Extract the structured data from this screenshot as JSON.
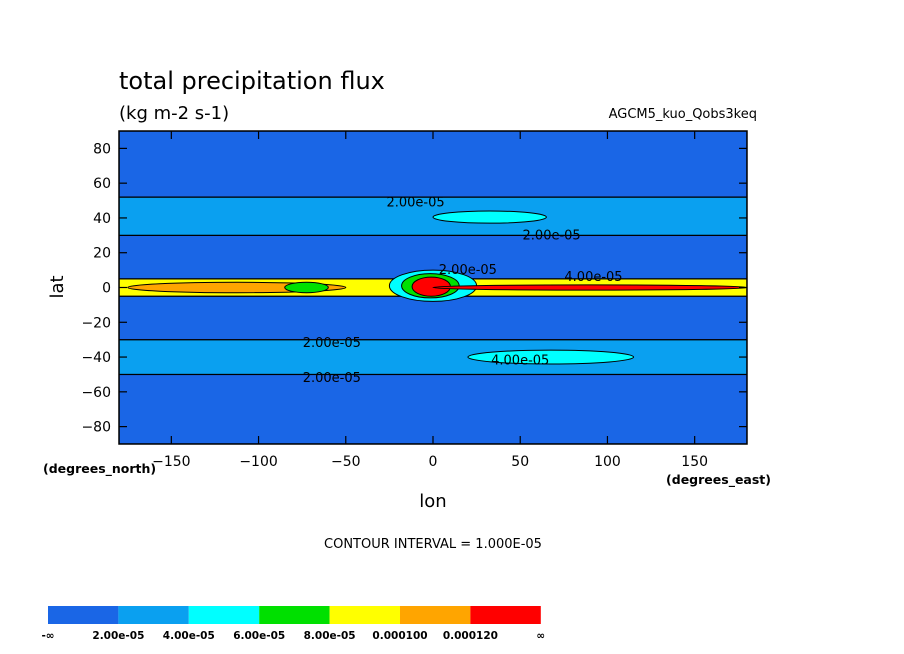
{
  "chart_data": {
    "type": "contour",
    "title": "total precipitation flux",
    "units": "(kg m-2 s-1)",
    "dataset": "AGCM5_kuo_Qobs3keq",
    "xlabel": "lon",
    "ylabel": "lat",
    "x_units": "(degrees_east)",
    "y_units": "(degrees_north)",
    "xlim": [
      -180,
      180
    ],
    "ylim": [
      -90,
      90
    ],
    "x_ticks": [
      -150,
      -100,
      -50,
      0,
      50,
      100,
      150
    ],
    "y_ticks": [
      80,
      60,
      40,
      20,
      0,
      -20,
      -40,
      -60,
      -80
    ],
    "contour_interval_text": "CONTOUR INTERVAL = 1.000E-05",
    "contour_labels": [
      {
        "text": "2.00e-05",
        "lon": -10,
        "lat": 49
      },
      {
        "text": "2.00e-05",
        "lon": 68,
        "lat": 30
      },
      {
        "text": "2.00e-05",
        "lon": 20,
        "lat": 10
      },
      {
        "text": "4.00e-05",
        "lon": 92,
        "lat": 6
      },
      {
        "text": "2.00e-05",
        "lon": -58,
        "lat": -32
      },
      {
        "text": "4.00e-05",
        "lon": 50,
        "lat": -42
      },
      {
        "text": "2.00e-05",
        "lon": -58,
        "lat": -52
      }
    ],
    "zonal_bands": [
      {
        "lat_min": -90,
        "lat_max": -50,
        "level": 0
      },
      {
        "lat_min": -50,
        "lat_max": -30,
        "level": 1
      },
      {
        "lat_min": -30,
        "lat_max": -5,
        "level": 0
      },
      {
        "lat_min": -5,
        "lat_max": 5,
        "level": 4
      },
      {
        "lat_min": 5,
        "lat_max": 30,
        "level": 0
      },
      {
        "lat_min": 30,
        "lat_max": 52,
        "level": 1
      },
      {
        "lat_min": 52,
        "lat_max": 90,
        "level": 0
      }
    ],
    "features": [
      {
        "lon_min": 0,
        "lon_max": 65,
        "lat_min": 37,
        "lat_max": 44,
        "level": 2
      },
      {
        "lon_min": 20,
        "lon_max": 115,
        "lat_min": -44,
        "lat_max": -36,
        "level": 2
      },
      {
        "lon_min": -175,
        "lon_max": -50,
        "lat_min": -3,
        "lat_max": 3,
        "level": 5
      },
      {
        "lon_min": -85,
        "lon_max": -60,
        "lat_min": -3,
        "lat_max": 3,
        "level": 3
      },
      {
        "lon_min": -25,
        "lon_max": 25,
        "lat_min": -8,
        "lat_max": 10,
        "level": 2
      },
      {
        "lon_min": -18,
        "lon_max": 15,
        "lat_min": -6,
        "lat_max": 8,
        "level": 3
      },
      {
        "lon_min": -12,
        "lon_max": 10,
        "lat_min": -5,
        "lat_max": 6,
        "level": 6
      },
      {
        "lon_min": 0,
        "lon_max": 180,
        "lat_min": -1.5,
        "lat_max": 1.5,
        "level": 6
      }
    ],
    "legend": {
      "colors": [
        "#1a66e6",
        "#0aa0f0",
        "#00ffff",
        "#00e000",
        "#ffff00",
        "#ffa500",
        "#ff0000"
      ],
      "labels": [
        "-∞",
        "2.00e-05",
        "4.00e-05",
        "6.00e-05",
        "8.00e-05",
        "0.000100",
        "0.000120",
        "∞"
      ]
    }
  }
}
